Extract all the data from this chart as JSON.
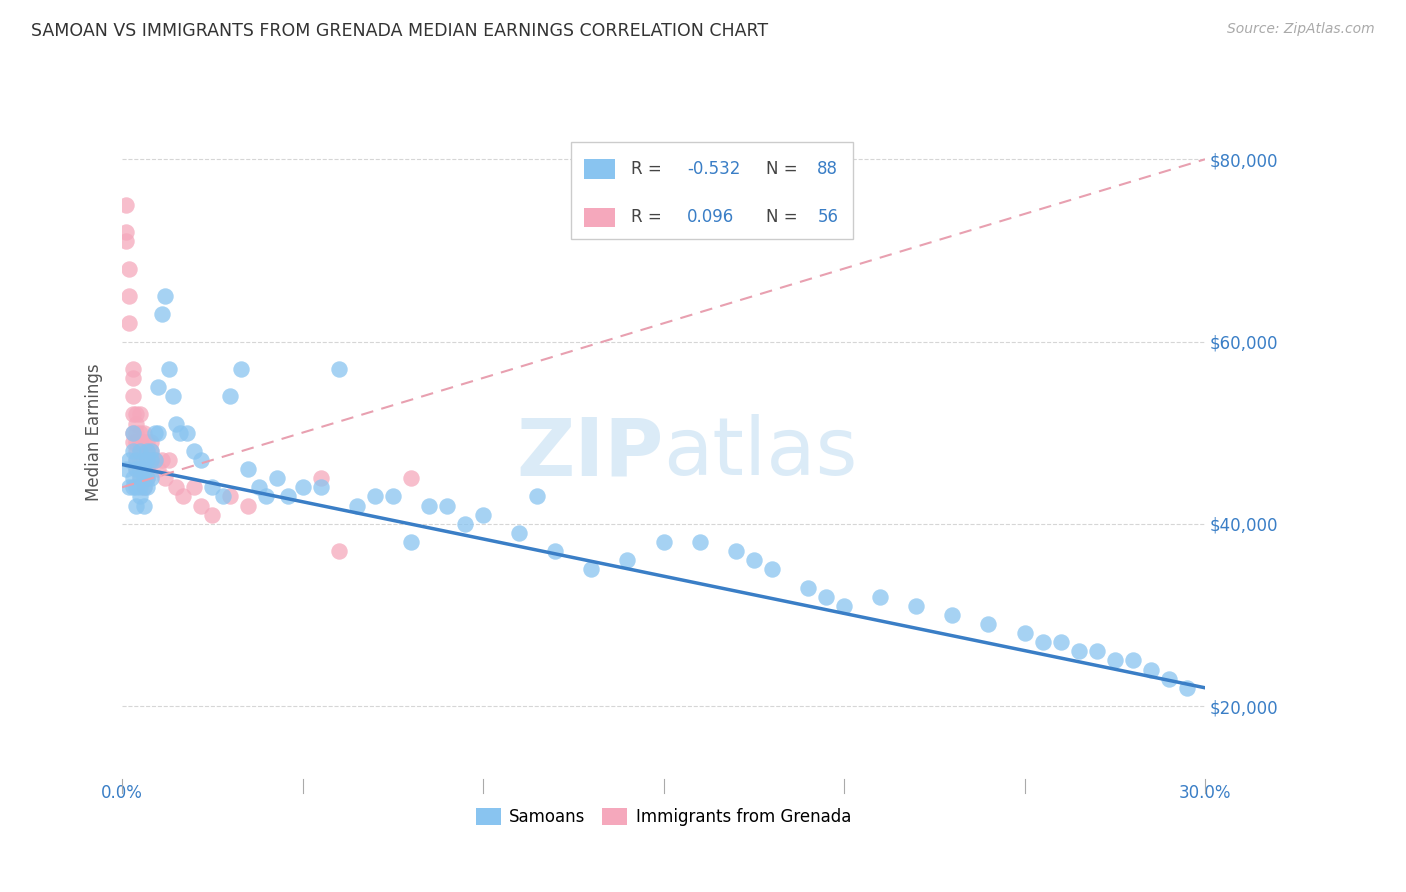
{
  "title": "SAMOAN VS IMMIGRANTS FROM GRENADA MEDIAN EARNINGS CORRELATION CHART",
  "source": "Source: ZipAtlas.com",
  "ylabel": "Median Earnings",
  "y_ticks": [
    20000,
    40000,
    60000,
    80000
  ],
  "y_tick_labels": [
    "$20,000",
    "$40,000",
    "$60,000",
    "$80,000"
  ],
  "x_range": [
    0.0,
    0.3
  ],
  "y_range": [
    12000,
    88000
  ],
  "samoans_R": -0.532,
  "samoans_N": 88,
  "grenada_R": 0.096,
  "grenada_N": 56,
  "legend_label_1": "Samoans",
  "legend_label_2": "Immigrants from Grenada",
  "color_samoans": "#89C4F0",
  "color_grenada": "#F5A8BC",
  "color_trend_samoans": "#3A7EC6",
  "color_trend_grenada": "#E8A0B0",
  "watermark_zip": "ZIP",
  "watermark_atlas": "atlas",
  "samoans_x": [
    0.001,
    0.002,
    0.002,
    0.003,
    0.003,
    0.003,
    0.003,
    0.004,
    0.004,
    0.004,
    0.004,
    0.005,
    0.005,
    0.005,
    0.005,
    0.005,
    0.006,
    0.006,
    0.006,
    0.006,
    0.006,
    0.007,
    0.007,
    0.007,
    0.007,
    0.008,
    0.008,
    0.008,
    0.009,
    0.009,
    0.01,
    0.01,
    0.011,
    0.012,
    0.013,
    0.014,
    0.015,
    0.016,
    0.018,
    0.02,
    0.022,
    0.025,
    0.028,
    0.03,
    0.033,
    0.035,
    0.038,
    0.04,
    0.043,
    0.046,
    0.05,
    0.055,
    0.06,
    0.065,
    0.07,
    0.075,
    0.08,
    0.085,
    0.09,
    0.095,
    0.1,
    0.11,
    0.115,
    0.12,
    0.13,
    0.14,
    0.15,
    0.16,
    0.17,
    0.175,
    0.18,
    0.19,
    0.195,
    0.2,
    0.21,
    0.22,
    0.23,
    0.24,
    0.25,
    0.255,
    0.26,
    0.265,
    0.27,
    0.275,
    0.28,
    0.285,
    0.29,
    0.295
  ],
  "samoans_y": [
    46000,
    47000,
    44000,
    48000,
    50000,
    45000,
    44000,
    47000,
    46000,
    44000,
    42000,
    48000,
    46000,
    45000,
    44000,
    43000,
    47000,
    46000,
    45000,
    44000,
    42000,
    48000,
    47000,
    45000,
    44000,
    48000,
    47000,
    45000,
    50000,
    47000,
    55000,
    50000,
    63000,
    65000,
    57000,
    54000,
    51000,
    50000,
    50000,
    48000,
    47000,
    44000,
    43000,
    54000,
    57000,
    46000,
    44000,
    43000,
    45000,
    43000,
    44000,
    44000,
    57000,
    42000,
    43000,
    43000,
    38000,
    42000,
    42000,
    40000,
    41000,
    39000,
    43000,
    37000,
    35000,
    36000,
    38000,
    38000,
    37000,
    36000,
    35000,
    33000,
    32000,
    31000,
    32000,
    31000,
    30000,
    29000,
    28000,
    27000,
    27000,
    26000,
    26000,
    25000,
    25000,
    24000,
    23000,
    22000
  ],
  "grenada_x": [
    0.001,
    0.001,
    0.001,
    0.002,
    0.002,
    0.002,
    0.003,
    0.003,
    0.003,
    0.003,
    0.003,
    0.003,
    0.004,
    0.004,
    0.004,
    0.004,
    0.004,
    0.004,
    0.004,
    0.005,
    0.005,
    0.005,
    0.005,
    0.005,
    0.005,
    0.005,
    0.006,
    0.006,
    0.006,
    0.006,
    0.006,
    0.006,
    0.006,
    0.007,
    0.007,
    0.007,
    0.007,
    0.007,
    0.008,
    0.008,
    0.008,
    0.009,
    0.01,
    0.011,
    0.012,
    0.013,
    0.015,
    0.017,
    0.02,
    0.022,
    0.025,
    0.03,
    0.035,
    0.055,
    0.06,
    0.08
  ],
  "grenada_y": [
    75000,
    72000,
    71000,
    68000,
    65000,
    62000,
    57000,
    56000,
    54000,
    52000,
    50000,
    49000,
    52000,
    51000,
    50000,
    49000,
    48000,
    47000,
    46000,
    52000,
    50000,
    49000,
    48000,
    47000,
    46000,
    45000,
    50000,
    49000,
    48000,
    47000,
    46000,
    45000,
    44000,
    49000,
    48000,
    47000,
    46000,
    45000,
    49000,
    48000,
    47000,
    47000,
    46000,
    47000,
    45000,
    47000,
    44000,
    43000,
    44000,
    42000,
    41000,
    43000,
    42000,
    45000,
    37000,
    45000
  ],
  "trend_samoans_x0": 0.0,
  "trend_samoans_x1": 0.3,
  "trend_samoans_y0": 46500,
  "trend_samoans_y1": 22000,
  "trend_grenada_x0": 0.0,
  "trend_grenada_x1": 0.3,
  "trend_grenada_y0": 44000,
  "trend_grenada_y1": 80000
}
